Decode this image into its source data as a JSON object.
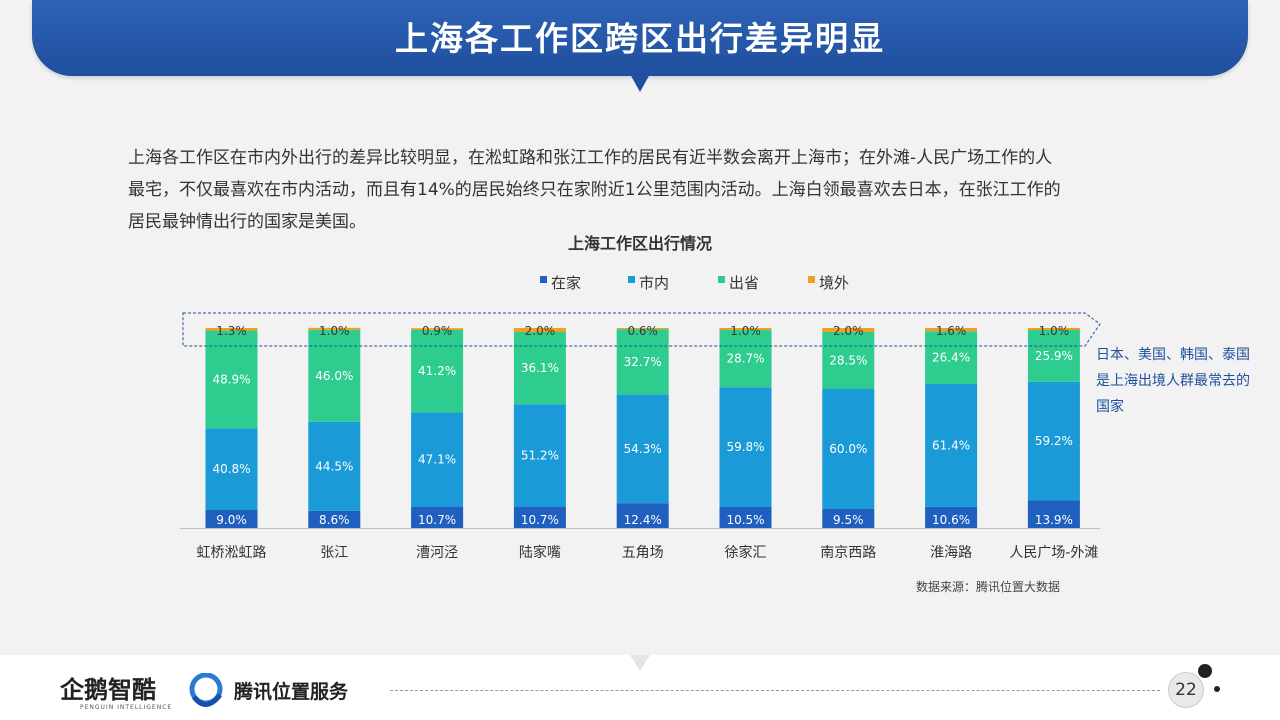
{
  "header": {
    "title": "上海各工作区跨区出行差异明显"
  },
  "intro": {
    "lines": [
      "上海各工作区在市内外出行的差异比较明显，在淞虹路和张江工作的居民有近半数会离开上海市；在外滩-人民广场工作的人",
      "最宅，不仅最喜欢在市内活动，而且有14%的居民始终只在家附近1公里范围内活动。上海白领最喜欢去日本，在张江工作的",
      "居民最钟情出行的国家是美国。"
    ]
  },
  "chart_data": {
    "type": "bar",
    "stacked": true,
    "title": "上海工作区出行情况",
    "categories": [
      "虹桥淞虹路",
      "张江",
      "漕河泾",
      "陆家嘴",
      "五角场",
      "徐家汇",
      "南京西路",
      "淮海路",
      "人民广场-外滩"
    ],
    "series": [
      {
        "name": "在家",
        "color": "#1f5fbf",
        "values": [
          9.0,
          8.6,
          10.7,
          10.7,
          12.4,
          10.5,
          9.5,
          10.6,
          13.9
        ],
        "labels": [
          "9.0%",
          "8.6%",
          "10.7%",
          "10.7%",
          "12.4%",
          "10.5%",
          "9.5%",
          "10.6%",
          "13.9%"
        ]
      },
      {
        "name": "市内",
        "color": "#1a9ad6",
        "values": [
          40.8,
          44.5,
          47.1,
          51.2,
          54.3,
          59.8,
          60.0,
          61.4,
          59.2
        ],
        "labels": [
          "40.8%",
          "44.5%",
          "47.1%",
          "51.2%",
          "54.3%",
          "59.8%",
          "60.0%",
          "61.4%",
          "59.2%"
        ]
      },
      {
        "name": "出省",
        "color": "#2ecc8e",
        "values": [
          48.9,
          46.0,
          41.2,
          36.1,
          32.7,
          28.7,
          28.5,
          26.4,
          25.9
        ],
        "labels": [
          "48.9%",
          "46.0%",
          "41.2%",
          "36.1%",
          "32.7%",
          "28.7%",
          "28.5%",
          "26.4%",
          "25.9%"
        ]
      },
      {
        "name": "境外",
        "color": "#f0a020",
        "values": [
          1.3,
          1.0,
          0.9,
          2.0,
          0.6,
          1.0,
          2.0,
          1.6,
          1.0
        ],
        "labels": [
          "1.3%",
          "1.0%",
          "0.9%",
          "2.0%",
          "0.6%",
          "1.0%",
          "2.0%",
          "1.6%",
          "1.0%"
        ]
      }
    ],
    "ylim": [
      0,
      100
    ],
    "legend_position": "top",
    "grid": false
  },
  "callout": {
    "text": "日本、美国、韩国、泰国是上海出境人群最常去的国家"
  },
  "source": {
    "text": "数据来源：腾讯位置大数据"
  },
  "footer": {
    "logo1_name": "企鹅智酷",
    "logo1_sub": "PENGUIN INTELLIGENCE",
    "logo2_name": "腾讯位置服务",
    "page_number": "22"
  }
}
